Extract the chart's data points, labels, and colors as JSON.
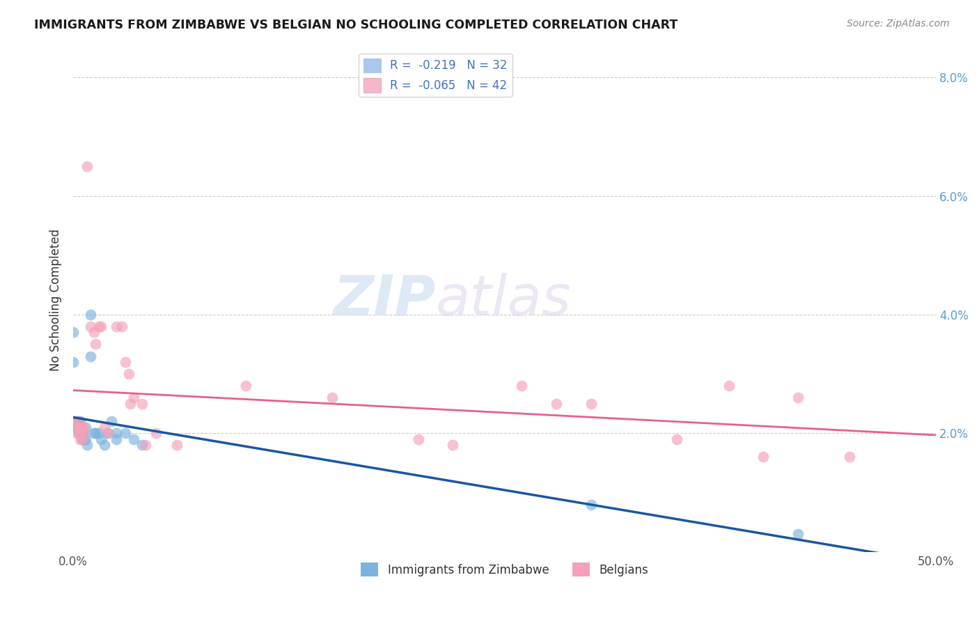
{
  "title": "IMMIGRANTS FROM ZIMBABWE VS BELGIAN NO SCHOOLING COMPLETED CORRELATION CHART",
  "source": "Source: ZipAtlas.com",
  "ylabel_label": "No Schooling Completed",
  "xlim": [
    0.0,
    0.5
  ],
  "ylim": [
    0.0,
    0.085
  ],
  "xticks": [
    0.0,
    0.5
  ],
  "xticklabels": [
    "0.0%",
    "50.0%"
  ],
  "yticks": [
    0.0,
    0.02,
    0.04,
    0.06,
    0.08
  ],
  "yticklabels_left": [
    "",
    "",
    "",
    "",
    ""
  ],
  "yticklabels_right": [
    "",
    "2.0%",
    "4.0%",
    "6.0%",
    "8.0%"
  ],
  "legend_color1": "#a8c8f0",
  "legend_color2": "#f5b8c8",
  "watermark_zip": "ZIP",
  "watermark_atlas": "atlas",
  "zimbabwe_color": "#7ab3e0",
  "belgian_color": "#f5a0b8",
  "line_zimbabwe_color": "#1a56a0",
  "line_belgian_color": "#e8608a",
  "zimbabwe_points": [
    [
      0.0,
      0.037
    ],
    [
      0.0,
      0.032
    ],
    [
      0.002,
      0.022
    ],
    [
      0.002,
      0.021
    ],
    [
      0.003,
      0.022
    ],
    [
      0.003,
      0.021
    ],
    [
      0.003,
      0.02
    ],
    [
      0.004,
      0.022
    ],
    [
      0.004,
      0.021
    ],
    [
      0.005,
      0.02
    ],
    [
      0.005,
      0.019
    ],
    [
      0.006,
      0.02
    ],
    [
      0.006,
      0.019
    ],
    [
      0.007,
      0.021
    ],
    [
      0.007,
      0.019
    ],
    [
      0.008,
      0.018
    ],
    [
      0.01,
      0.04
    ],
    [
      0.01,
      0.033
    ],
    [
      0.012,
      0.02
    ],
    [
      0.013,
      0.02
    ],
    [
      0.015,
      0.02
    ],
    [
      0.016,
      0.019
    ],
    [
      0.018,
      0.018
    ],
    [
      0.02,
      0.02
    ],
    [
      0.022,
      0.022
    ],
    [
      0.025,
      0.02
    ],
    [
      0.025,
      0.019
    ],
    [
      0.03,
      0.02
    ],
    [
      0.035,
      0.019
    ],
    [
      0.04,
      0.018
    ],
    [
      0.3,
      0.008
    ],
    [
      0.42,
      0.003
    ]
  ],
  "belgian_points": [
    [
      0.0,
      0.022
    ],
    [
      0.001,
      0.021
    ],
    [
      0.002,
      0.021
    ],
    [
      0.002,
      0.02
    ],
    [
      0.003,
      0.022
    ],
    [
      0.003,
      0.021
    ],
    [
      0.004,
      0.02
    ],
    [
      0.004,
      0.019
    ],
    [
      0.005,
      0.021
    ],
    [
      0.005,
      0.019
    ],
    [
      0.006,
      0.021
    ],
    [
      0.006,
      0.02
    ],
    [
      0.008,
      0.065
    ],
    [
      0.01,
      0.038
    ],
    [
      0.012,
      0.037
    ],
    [
      0.013,
      0.035
    ],
    [
      0.015,
      0.038
    ],
    [
      0.016,
      0.038
    ],
    [
      0.018,
      0.021
    ],
    [
      0.02,
      0.02
    ],
    [
      0.025,
      0.038
    ],
    [
      0.028,
      0.038
    ],
    [
      0.03,
      0.032
    ],
    [
      0.032,
      0.03
    ],
    [
      0.033,
      0.025
    ],
    [
      0.035,
      0.026
    ],
    [
      0.04,
      0.025
    ],
    [
      0.042,
      0.018
    ],
    [
      0.048,
      0.02
    ],
    [
      0.06,
      0.018
    ],
    [
      0.1,
      0.028
    ],
    [
      0.15,
      0.026
    ],
    [
      0.2,
      0.019
    ],
    [
      0.22,
      0.018
    ],
    [
      0.26,
      0.028
    ],
    [
      0.28,
      0.025
    ],
    [
      0.3,
      0.025
    ],
    [
      0.35,
      0.019
    ],
    [
      0.38,
      0.028
    ],
    [
      0.4,
      0.016
    ],
    [
      0.42,
      0.026
    ],
    [
      0.45,
      0.016
    ]
  ]
}
